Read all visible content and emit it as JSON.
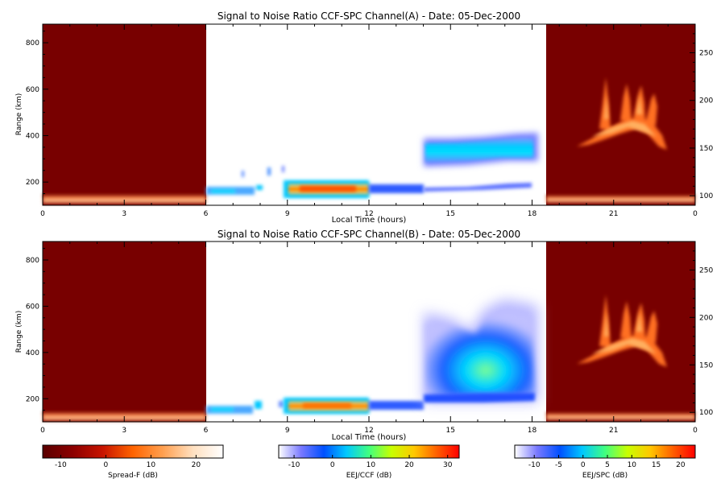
{
  "chart_data": [
    {
      "type": "heatmap",
      "title": "Signal to Noise Ratio CCF-SPC Channel(A) - Date: 05-Dec-2000",
      "xlabel": "Local Time (hours)",
      "ylabel": "Range (km)",
      "x_ticks": [
        "0",
        "3",
        "6",
        "9",
        "12",
        "15",
        "18",
        "21",
        "0"
      ],
      "xlim": [
        0,
        24
      ],
      "ylim_left": [
        100,
        880
      ],
      "y_ticks_left": [
        "200",
        "400",
        "600",
        "800"
      ],
      "ylim_right": [
        90,
        280
      ],
      "y_ticks_right": [
        "100",
        "150",
        "200",
        "250"
      ],
      "segments": [
        {
          "name": "Spread-F",
          "x": [
            0,
            6
          ],
          "background": "#780000",
          "content": "strong echo band at lowest ranges (100-130 km)"
        },
        {
          "name": "EEJ/CCF",
          "x": [
            6,
            12
          ],
          "content": "patchy echoes 140-200 km (6-9 h), strong layer ~170 km peaking ~22 dB (9-12 h)"
        },
        {
          "name": "EEJ/SPC",
          "x": [
            12,
            18.5
          ],
          "content": "layer ~175 km (12-14 h), upper layer 290-390 km and thin layer ~190 km (14-18.5 h)"
        },
        {
          "name": "Spread-F",
          "x": [
            18.5,
            24
          ],
          "background": "#780000",
          "content": "plume structures rising to ~650 km (20-23 h), bottom band 100-120 km"
        }
      ]
    },
    {
      "type": "heatmap",
      "title": "Signal to Noise Ratio CCF-SPC Channel(B) - Date: 05-Dec-2000",
      "xlabel": "Local Time (hours)",
      "ylabel": "Range (km)",
      "x_ticks": [
        "0",
        "3",
        "6",
        "9",
        "12",
        "15",
        "18",
        "21",
        "0"
      ],
      "xlim": [
        0,
        24
      ],
      "ylim_left": [
        100,
        880
      ],
      "y_ticks_left": [
        "200",
        "400",
        "600",
        "800"
      ],
      "ylim_right": [
        90,
        280
      ],
      "y_ticks_right": [
        "100",
        "150",
        "200",
        "250"
      ],
      "segments": [
        {
          "name": "Spread-F",
          "x": [
            0,
            6
          ],
          "background": "#780000",
          "content": "strong echo band at lowest ranges (100-130 km)"
        },
        {
          "name": "EEJ/CCF",
          "x": [
            6,
            12
          ],
          "content": "patchy echoes 140-200 km (6-9 h), strong layer ~170 km (9-12 h)"
        },
        {
          "name": "EEJ/SPC",
          "x": [
            12,
            18.5
          ],
          "content": "layer ~175 km (12-14 h), broad diffuse echo region 200-600 km (14-18.5 h)"
        },
        {
          "name": "Spread-F",
          "x": [
            18.5,
            24
          ],
          "background": "#780000",
          "content": "plume structures rising to ~650 km (20-23 h), bottom band 100-120 km"
        }
      ]
    }
  ],
  "colorbars": [
    {
      "label": "Spread-F (dB)",
      "ticks": [
        "-10",
        "0",
        "10",
        "20"
      ],
      "range": [
        -14,
        26
      ],
      "stops": [
        "#5a0000",
        "#8c0000",
        "#c81400",
        "#ff6400",
        "#ffa050",
        "#ffe0c0",
        "#ffffff"
      ]
    },
    {
      "label": "EEJ/CCF (dB)",
      "ticks": [
        "-10",
        "0",
        "10",
        "20",
        "30"
      ],
      "range": [
        -14,
        33
      ],
      "stops": [
        "#ffffff",
        "#7878ff",
        "#0050ff",
        "#00c8ff",
        "#40ff80",
        "#c8ff00",
        "#ffc800",
        "#ff6000",
        "#ff0000"
      ]
    },
    {
      "label": "EEJ/SPC (dB)",
      "ticks": [
        "-10",
        "-5",
        "0",
        "5",
        "10",
        "15",
        "20"
      ],
      "range": [
        -14,
        23
      ],
      "stops": [
        "#ffffff",
        "#7878ff",
        "#0050ff",
        "#00c8ff",
        "#40ff80",
        "#c8ff00",
        "#ffc800",
        "#ff6000",
        "#ff0000"
      ]
    }
  ]
}
